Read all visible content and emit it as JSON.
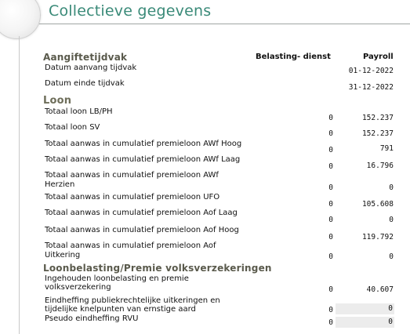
{
  "page": {
    "title": "Collectieve gegevens"
  },
  "columns": {
    "belastingdienst": "Belasting- dienst",
    "payroll": "Payroll"
  },
  "aangiftetijdvak": {
    "heading": "Aangiftetijdvak",
    "rows": [
      {
        "label": "Datum aanvang tijdvak",
        "payroll": "01-12-2022"
      },
      {
        "label": "Datum einde tijdvak",
        "payroll": "31-12-2022"
      }
    ]
  },
  "loon": {
    "heading": "Loon",
    "rows": [
      {
        "label": "Totaal loon LB/PH",
        "bd": "0",
        "payroll": "152.237"
      },
      {
        "label": "Totaal loon SV",
        "bd": "0",
        "payroll": "152.237"
      },
      {
        "label": "Totaal aanwas in cumulatief premieloon AWf Hoog",
        "bd": "0",
        "payroll": "791"
      },
      {
        "label": "Totaal aanwas in cumulatief premieloon AWf Laag",
        "bd": "0",
        "payroll": "16.796"
      },
      {
        "label1": "Totaal aanwas in cumulatief premieloon AWf",
        "label2": "Herzien",
        "bd": "0",
        "payroll": "0"
      },
      {
        "label": "Totaal aanwas in cumulatief premieloon UFO",
        "bd": "0",
        "payroll": "105.608"
      },
      {
        "label": "Totaal aanwas in cumulatief premieloon Aof Laag",
        "bd": "0",
        "payroll": "0"
      },
      {
        "label": "Totaal aanwas in cumulatief premieloon Aof Hoog",
        "bd": "0",
        "payroll": "119.792"
      },
      {
        "label1": "Totaal aanwas in cumulatief premieloon Aof",
        "label2": "Uitkering",
        "bd": "0",
        "payroll": "0"
      }
    ]
  },
  "loonbelasting": {
    "heading": "Loonbelasting/Premie volksverzekeringen",
    "rows": [
      {
        "label1": "Ingehouden loonbelasting en premie",
        "label2": "volksverzekering",
        "bd": "0",
        "payroll": "40.607"
      },
      {
        "label1": "Eindheffing publiekrechtelijke uitkeringen en",
        "label2": "tijdelijke knelpunten van ernstige aard",
        "bd": "0",
        "payroll": "0"
      },
      {
        "label": "Pseudo eindheffing RVU",
        "bd": "0",
        "payroll": "0"
      }
    ]
  }
}
